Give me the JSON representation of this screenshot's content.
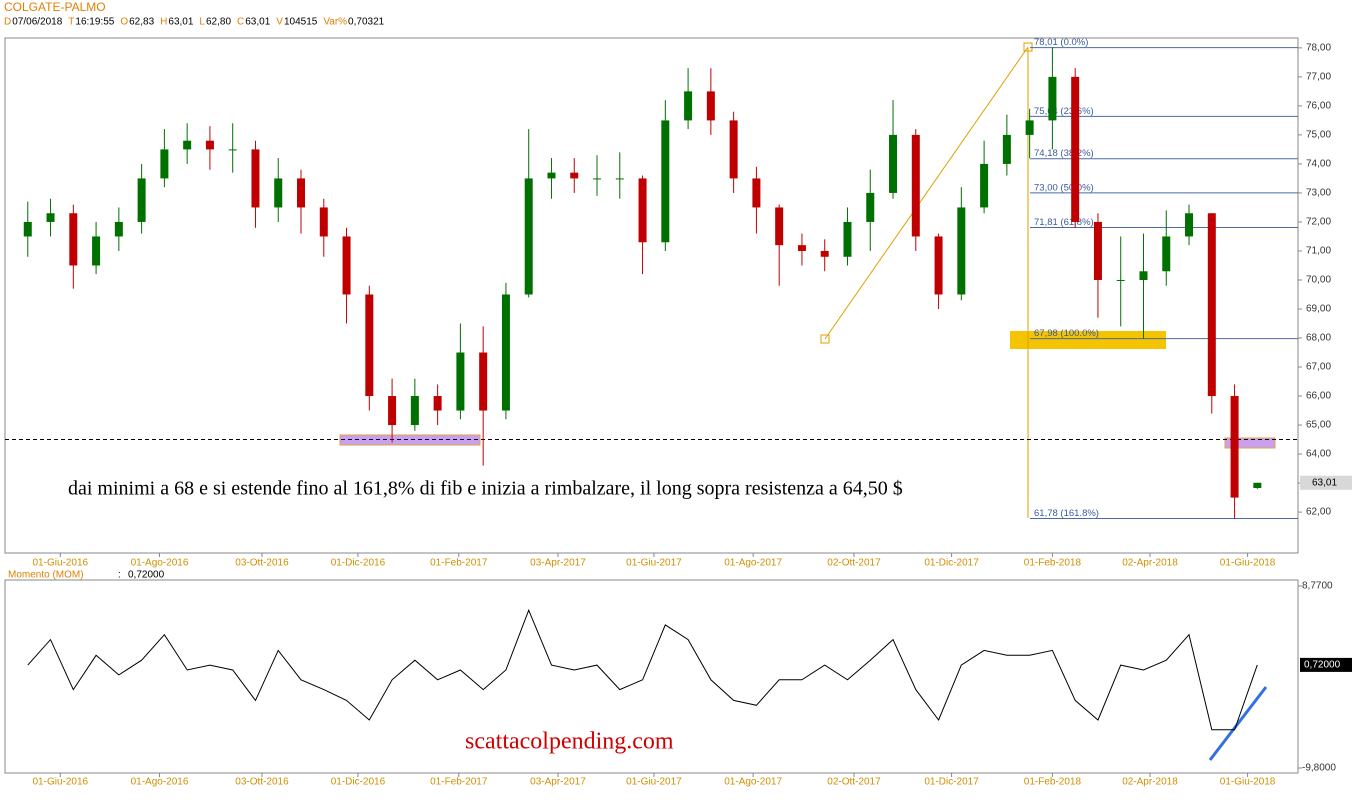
{
  "header": {
    "symbol": "COLGATE-PALMO",
    "fields": [
      {
        "key": "D",
        "value": "07/06/2018"
      },
      {
        "key": "T",
        "value": "16:19:55"
      },
      {
        "key": "O",
        "value": "62,83"
      },
      {
        "key": "H",
        "value": "63,01"
      },
      {
        "key": "L",
        "value": "62,80"
      },
      {
        "key": "C",
        "value": "63,01"
      },
      {
        "key": "V",
        "value": "104515"
      },
      {
        "key": "Var%",
        "value": "0,70321"
      }
    ]
  },
  "chart_data": [
    {
      "type": "candlestick",
      "x": [
        "2016-05-12",
        "2016-05-26",
        "2016-06-09",
        "2016-06-23",
        "2016-07-07",
        "2016-07-21",
        "2016-08-04",
        "2016-08-18",
        "2016-09-01",
        "2016-09-15",
        "2016-09-29",
        "2016-10-13",
        "2016-10-27",
        "2016-11-10",
        "2016-11-24",
        "2016-12-08",
        "2016-12-22",
        "2017-01-05",
        "2017-01-19",
        "2017-02-02",
        "2017-02-16",
        "2017-03-02",
        "2017-03-16",
        "2017-03-30",
        "2017-04-13",
        "2017-04-27",
        "2017-05-11",
        "2017-05-25",
        "2017-06-08",
        "2017-06-22",
        "2017-07-06",
        "2017-07-20",
        "2017-08-03",
        "2017-08-17",
        "2017-08-31",
        "2017-09-14",
        "2017-09-28",
        "2017-10-12",
        "2017-10-26",
        "2017-11-09",
        "2017-11-23",
        "2017-12-07",
        "2017-12-21",
        "2018-01-04",
        "2018-01-18",
        "2018-02-01",
        "2018-02-15",
        "2018-03-01",
        "2018-03-15",
        "2018-03-29",
        "2018-04-12",
        "2018-04-26",
        "2018-05-10",
        "2018-05-24",
        "2018-06-07"
      ],
      "open": [
        71.5,
        72,
        72.3,
        70.5,
        71.5,
        72,
        73.5,
        74.5,
        74.8,
        74.5,
        74.5,
        72.5,
        73.5,
        72.5,
        71.5,
        69.5,
        66,
        65,
        66,
        65.5,
        67.5,
        65.5,
        69.5,
        73.5,
        73.7,
        73.5,
        73.5,
        73.5,
        71.3,
        75.5,
        76.5,
        75.5,
        73.5,
        72.5,
        71.2,
        71,
        70.8,
        72,
        73,
        75,
        71.5,
        69.5,
        72.5,
        74,
        75,
        75.5,
        77,
        72,
        70,
        70,
        70.3,
        71.5,
        72.3,
        66,
        62.83
      ],
      "high": [
        72.7,
        72.8,
        72.6,
        72,
        72.5,
        74,
        75.2,
        75.4,
        75.3,
        75.4,
        74.8,
        74.2,
        73.8,
        72.8,
        71.8,
        69.8,
        66.6,
        66.6,
        66.4,
        68.5,
        68.4,
        69.9,
        75.2,
        74.2,
        74.2,
        74.3,
        74.4,
        73.6,
        76.2,
        77.3,
        77.3,
        75.8,
        73.9,
        72.6,
        71.6,
        71.4,
        72.5,
        73.8,
        76.2,
        75.2,
        71.6,
        73.2,
        74.8,
        75.7,
        75.9,
        78.01,
        77.3,
        72.3,
        71.5,
        71.6,
        72.4,
        72.6,
        72.3,
        66.4,
        63.01
      ],
      "low": [
        70.8,
        71.5,
        69.7,
        70.2,
        71,
        71.6,
        73.2,
        74,
        73.8,
        73.7,
        71.8,
        72,
        71.6,
        70.8,
        68.5,
        65.5,
        64.4,
        64.8,
        65,
        65.2,
        63.6,
        65.2,
        69.4,
        72.8,
        73,
        72.9,
        72.8,
        70.2,
        71,
        75.2,
        75,
        73,
        71.6,
        69.8,
        70.5,
        70.3,
        70.5,
        71,
        72.8,
        71,
        69,
        69.3,
        72.3,
        73.6,
        74.2,
        74.5,
        71.8,
        68.7,
        68.4,
        67.98,
        69.8,
        71.2,
        65.4,
        61.78,
        62.8
      ],
      "close": [
        72,
        72.3,
        70.5,
        71.5,
        72,
        73.5,
        74.5,
        74.8,
        74.5,
        74.5,
        72.5,
        73.5,
        72.5,
        71.5,
        69.5,
        66,
        65,
        66,
        65.5,
        67.5,
        65.5,
        69.5,
        73.5,
        73.7,
        73.5,
        73.5,
        73.5,
        71.3,
        75.5,
        76.5,
        75.5,
        73.5,
        72.5,
        71.2,
        71,
        70.8,
        72,
        73,
        75,
        71.5,
        69.5,
        72.5,
        74,
        75,
        75.5,
        77,
        72,
        70,
        70,
        70.3,
        71.5,
        72.3,
        66,
        62.5,
        63.01
      ],
      "close_label": "63,01",
      "up_color": "#007000",
      "down_color": "#c00000",
      "xlim": [
        "2016-04-28",
        "2018-07-02"
      ],
      "xticks": [
        {
          "value": "2016-06-01",
          "label": "01-Giu-2016"
        },
        {
          "value": "2016-08-01",
          "label": "01-Ago-2016"
        },
        {
          "value": "2016-10-03",
          "label": "03-Ott-2016"
        },
        {
          "value": "2016-12-01",
          "label": "01-Dic-2016"
        },
        {
          "value": "2017-02-01",
          "label": "01-Feb-2017"
        },
        {
          "value": "2017-04-03",
          "label": "03-Apr-2017"
        },
        {
          "value": "2017-06-01",
          "label": "01-Giu-2017"
        },
        {
          "value": "2017-08-01",
          "label": "01-Ago-2017"
        },
        {
          "value": "2017-10-02",
          "label": "02-Ott-2017"
        },
        {
          "value": "2017-12-01",
          "label": "01-Dic-2017"
        },
        {
          "value": "2018-02-01",
          "label": "01-Feb-2018"
        },
        {
          "value": "2018-04-02",
          "label": "02-Apr-2018"
        },
        {
          "value": "2018-06-01",
          "label": "01-Giu-2018"
        }
      ],
      "ylim": [
        60.59,
        78.34
      ],
      "yticks": [
        {
          "value": 62,
          "label": "62,00"
        },
        {
          "value": 63,
          "label": "63,00"
        },
        {
          "value": 64,
          "label": "64,00"
        },
        {
          "value": 65,
          "label": "65,00"
        },
        {
          "value": 66,
          "label": "66,00"
        },
        {
          "value": 67,
          "label": "67,00"
        },
        {
          "value": 68,
          "label": "68,00"
        },
        {
          "value": 69,
          "label": "69,00"
        },
        {
          "value": 70,
          "label": "70,00"
        },
        {
          "value": 71,
          "label": "71,00"
        },
        {
          "value": 72,
          "label": "72,00"
        },
        {
          "value": 73,
          "label": "73,00"
        },
        {
          "value": 74,
          "label": "74,00"
        },
        {
          "value": 75,
          "label": "75,00"
        },
        {
          "value": 76,
          "label": "76,00"
        },
        {
          "value": 77,
          "label": "77,00"
        },
        {
          "value": 78,
          "label": "78,00"
        }
      ],
      "fib_levels": [
        {
          "value": 78.01,
          "label": "78,01 (0.0%)"
        },
        {
          "value": 75.64,
          "label": "75,64 (23.6%)"
        },
        {
          "value": 74.18,
          "label": "74,18 (38.2%)"
        },
        {
          "value": 73.0,
          "label": "73,00 (50.0%)"
        },
        {
          "value": 71.81,
          "label": "71,81 (61.8%)"
        },
        {
          "value": 67.98,
          "label": "67,98 (100.0%)"
        },
        {
          "value": 61.78,
          "label": "61,78 (161.8%)"
        }
      ],
      "resistance": 64.5,
      "annotation": "dai minimi a 68 e si estende fino al 161,8% di fib e inizia a rimbalzare, il long sopra resistenza a 64,50 $"
    },
    {
      "type": "line",
      "name": "Momento (MOM)",
      "color": "#000000",
      "values": [
        0.7,
        3.3,
        -1.8,
        1.7,
        -0.3,
        1.2,
        3.8,
        0.2,
        0.7,
        0.2,
        -2.9,
        2.2,
        -0.8,
        -1.8,
        -2.9,
        -4.9,
        -0.8,
        1.2,
        -0.8,
        0.2,
        -1.8,
        0.2,
        6.3,
        0.7,
        0.2,
        0.7,
        -1.8,
        -0.8,
        4.8,
        3.3,
        -0.8,
        -2.9,
        -3.4,
        -0.8,
        -0.8,
        0.7,
        -0.8,
        1.2,
        3.3,
        -1.8,
        -4.9,
        0.7,
        2.2,
        1.7,
        1.7,
        2.2,
        -2.9,
        -4.9,
        0.7,
        0.2,
        1.2,
        3.8,
        -5.9,
        -5.9,
        0.72
      ],
      "value_label": "0,72000",
      "ylim": [
        -9.8,
        8.77
      ],
      "yticks": [
        {
          "value": 8.77,
          "label": "8,7700"
        },
        {
          "value": -9.8,
          "label": "-9,8000"
        }
      ],
      "xticks": [
        {
          "value": "2016-06-01",
          "label": "01-Giu-2016"
        },
        {
          "value": "2016-08-01",
          "label": "01-Ago-2016"
        },
        {
          "value": "2016-10-03",
          "label": "03-Ott-2016"
        },
        {
          "value": "2016-12-01",
          "label": "01-Dic-2016"
        },
        {
          "value": "2017-02-01",
          "label": "01-Feb-2017"
        },
        {
          "value": "2017-04-03",
          "label": "03-Apr-2017"
        },
        {
          "value": "2017-06-01",
          "label": "01-Giu-2017"
        },
        {
          "value": "2017-08-01",
          "label": "01-Ago-2017"
        },
        {
          "value": "2017-10-02",
          "label": "02-Ott-2017"
        },
        {
          "value": "2017-12-01",
          "label": "01-Dic-2017"
        },
        {
          "value": "2018-02-01",
          "label": "01-Feb-2018"
        },
        {
          "value": "2018-04-02",
          "label": "02-Apr-2018"
        },
        {
          "value": "2018-06-01",
          "label": "01-Giu-2018"
        }
      ],
      "site": "scattacolpending.com"
    }
  ]
}
